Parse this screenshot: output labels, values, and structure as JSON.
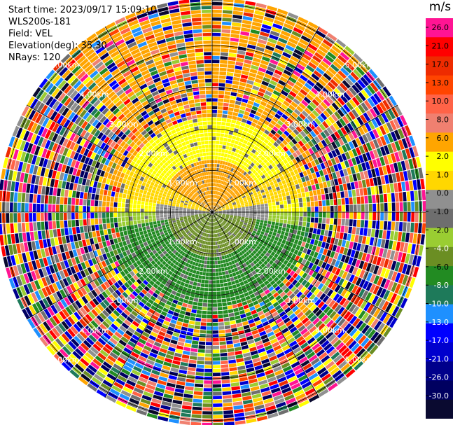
{
  "header": {
    "start_time": "Start time: 2023/09/17 15:09:10",
    "instrument": "WLS200s-181",
    "field": "Field: VEL",
    "elevation": "Elevation(deg): 35.30",
    "nrays": "NRays: 120"
  },
  "range_rings": {
    "labels": [
      "1.00km",
      "2.00km",
      "3.00km",
      "4.00km",
      "5.00km"
    ]
  },
  "colorbar": {
    "title": "m/s",
    "ticks": [
      "26.0",
      "21.0",
      "17.0",
      "13.0",
      "10.0",
      "8.0",
      "6.0",
      "2.0",
      "1.0",
      "0.0",
      "-1.0",
      "-2.0",
      "-4.0",
      "-6.0",
      "-8.0",
      "-10.0",
      "-13.0",
      "-17.0",
      "-21.0",
      "-26.0",
      "-30.0"
    ],
    "colors": [
      "#ff1493",
      "#ff0000",
      "#ee2b00",
      "#ff4500",
      "#ff6347",
      "#f08070",
      "#ffa500",
      "#ffff00",
      "#ffd700",
      "#909090",
      "#6e6e6e",
      "#9acd32",
      "#6b8e23",
      "#228b22",
      "#1e7a5a",
      "#1e90ff",
      "#0000ff",
      "#0000cd",
      "#00008b",
      "#000060",
      "#0a0a30"
    ]
  }
}
